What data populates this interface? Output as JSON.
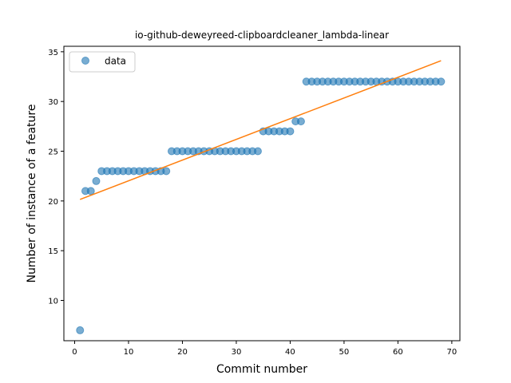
{
  "chart_data": {
    "type": "scatter",
    "title": "io-github-deweyreed-clipboardcleaner_lambda-linear",
    "xlabel": "Commit number",
    "ylabel": "Number of instance of a feature",
    "xlim": [
      -2,
      71.5
    ],
    "ylim": [
      5.95,
      35.55
    ],
    "xticks": [
      0,
      10,
      20,
      30,
      40,
      50,
      60,
      70
    ],
    "yticks": [
      10,
      15,
      20,
      25,
      30,
      35
    ],
    "grid": false,
    "legend_position": "top-left",
    "series": [
      {
        "name": "data",
        "kind": "scatter",
        "color": "#1f77b4",
        "x": [
          1,
          2,
          3,
          4,
          5,
          6,
          7,
          8,
          9,
          10,
          11,
          12,
          13,
          14,
          15,
          16,
          17,
          18,
          19,
          20,
          21,
          22,
          23,
          24,
          25,
          26,
          27,
          28,
          29,
          30,
          31,
          32,
          33,
          34,
          35,
          36,
          37,
          38,
          39,
          40,
          41,
          42,
          43,
          44,
          45,
          46,
          47,
          48,
          49,
          50,
          51,
          52,
          53,
          54,
          55,
          56,
          57,
          58,
          59,
          60,
          61,
          62,
          63,
          64,
          65,
          66,
          67,
          68
        ],
        "y": [
          7,
          21,
          21,
          22,
          23,
          23,
          23,
          23,
          23,
          23,
          23,
          23,
          23,
          23,
          23,
          23,
          23,
          25,
          25,
          25,
          25,
          25,
          25,
          25,
          25,
          25,
          25,
          25,
          25,
          25,
          25,
          25,
          25,
          25,
          27,
          27,
          27,
          27,
          27,
          27,
          28,
          28,
          32,
          32,
          32,
          32,
          32,
          32,
          32,
          32,
          32,
          32,
          32,
          32,
          32,
          32,
          32,
          32,
          32,
          32,
          32,
          32,
          32,
          32,
          32,
          32,
          32,
          32
        ]
      },
      {
        "kind": "line",
        "color": "#ff7f0e",
        "x": [
          1,
          68
        ],
        "y": [
          20.15,
          34.1
        ]
      }
    ]
  }
}
